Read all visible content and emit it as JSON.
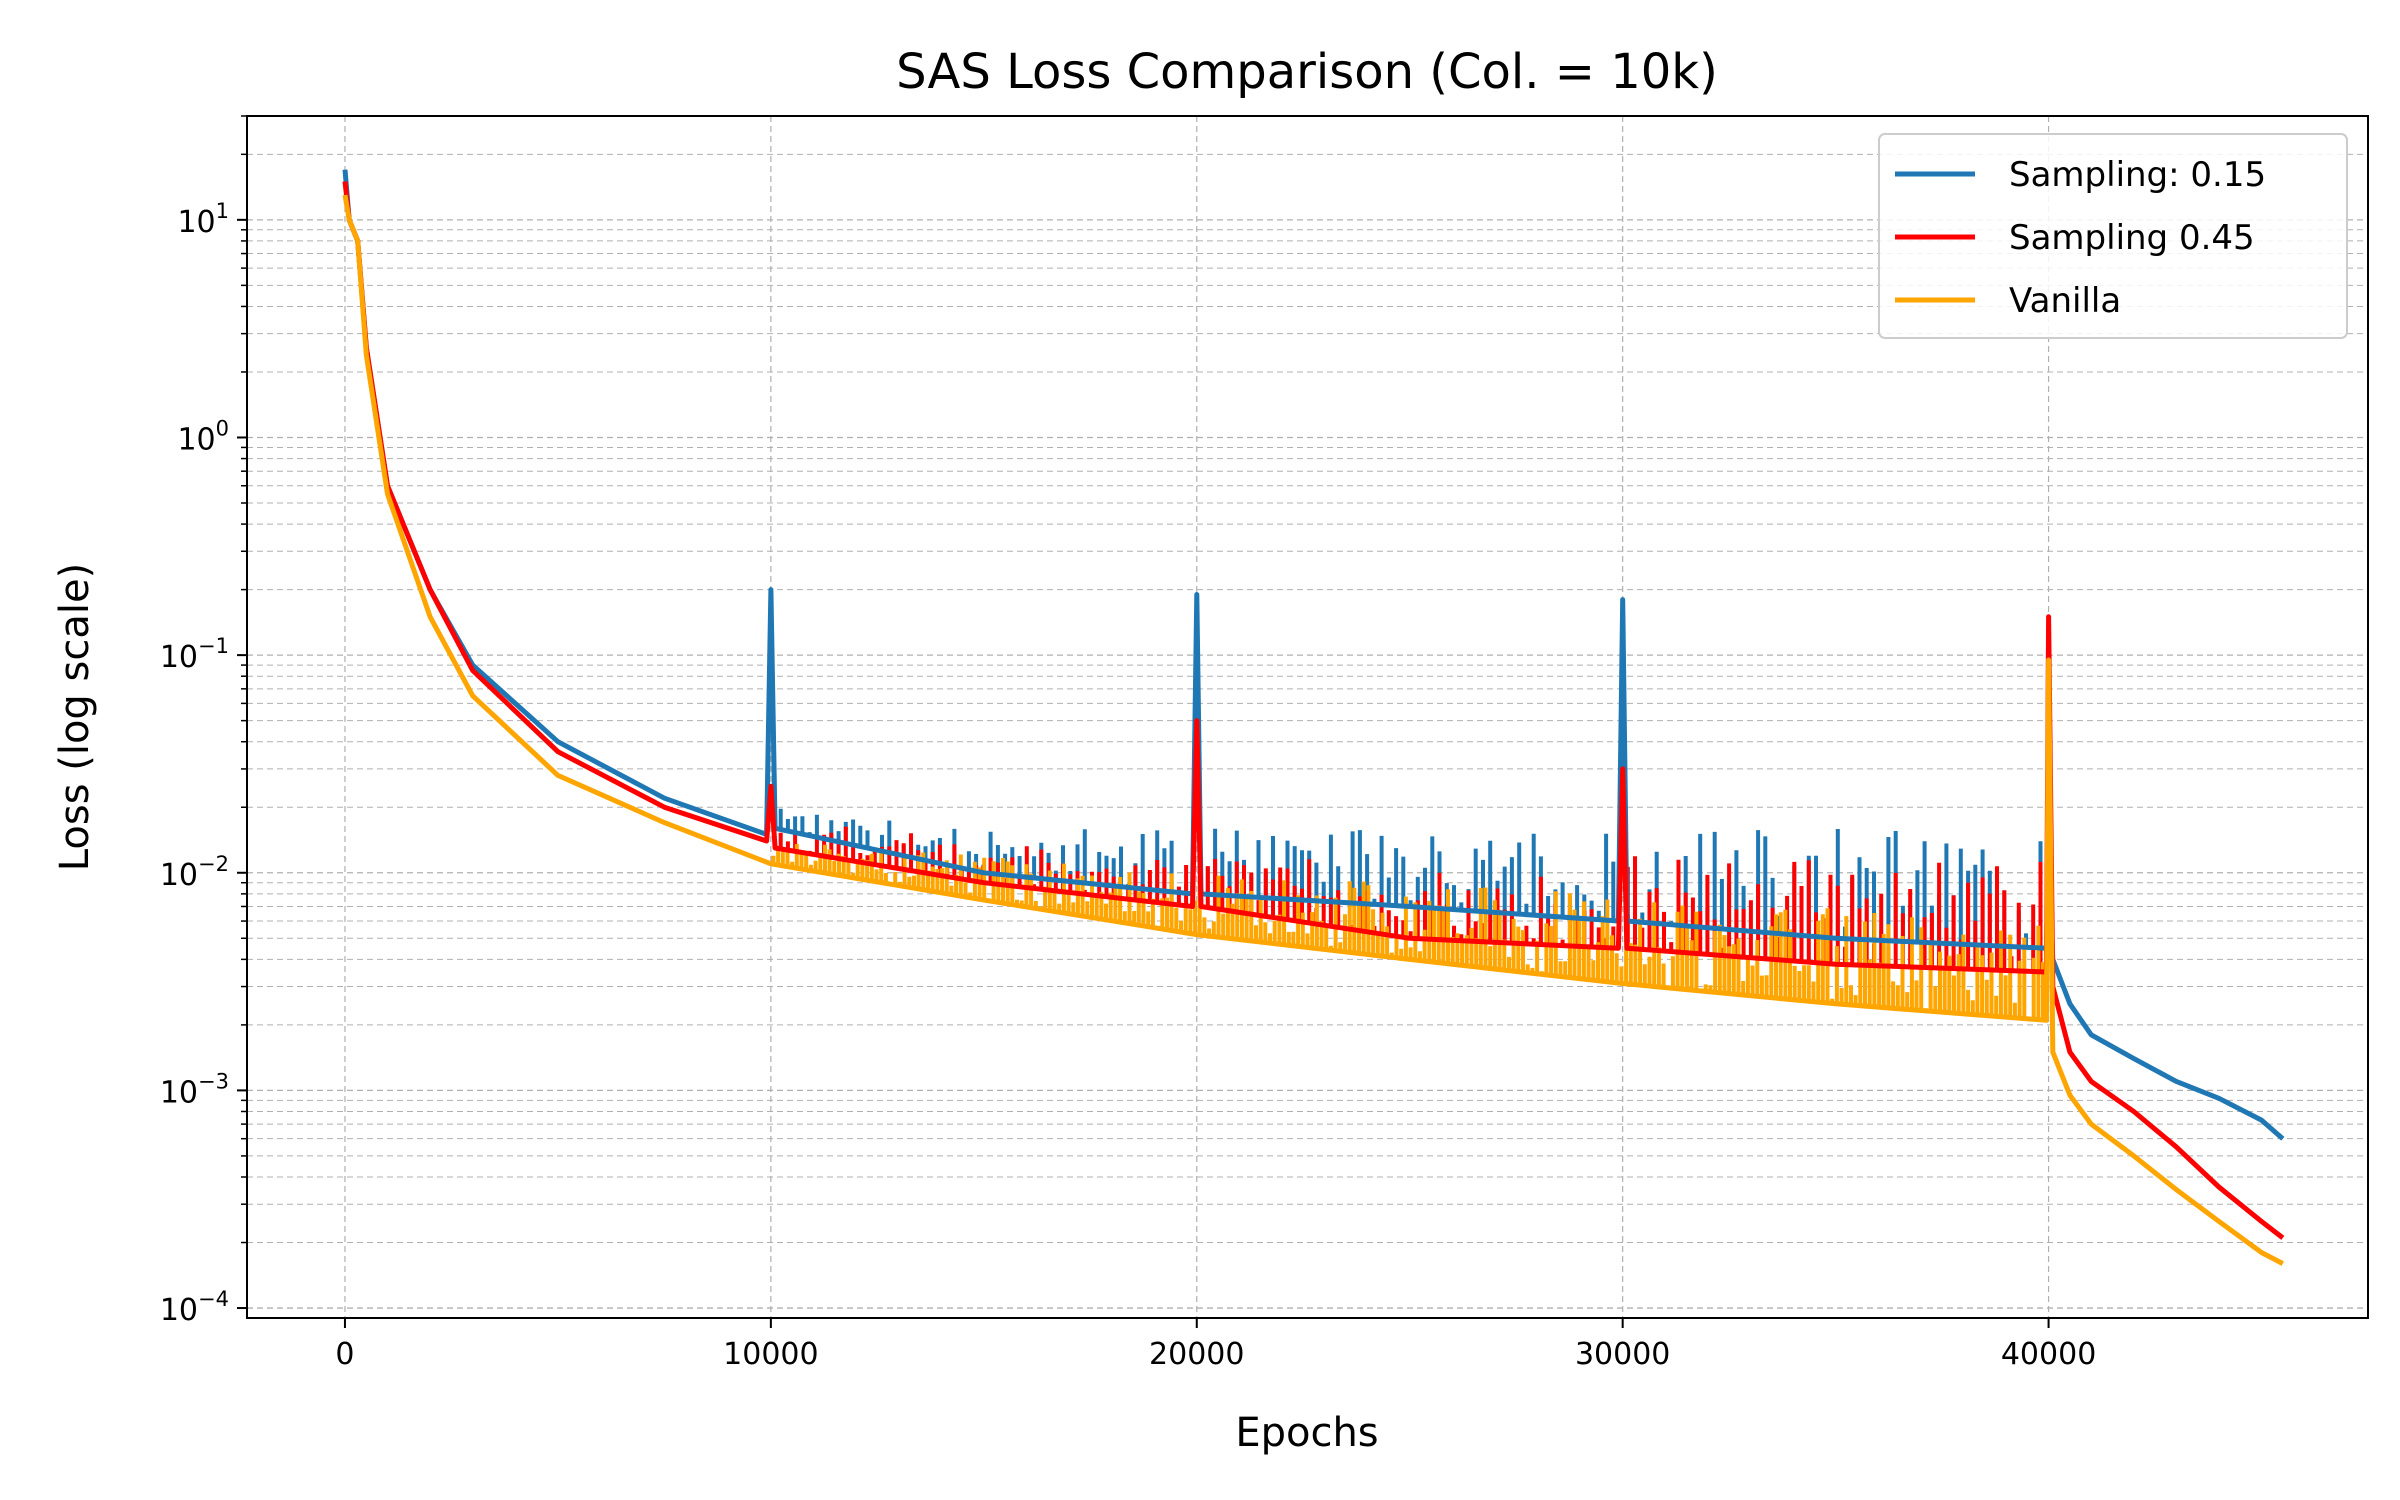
{
  "chart_data": {
    "type": "line",
    "title": "SAS Loss Comparison (Col. = 10k)",
    "xlabel": "Epochs",
    "ylabel": "Loss (log scale)",
    "y_scale": "log",
    "xlim": [
      -2300,
      47500
    ],
    "ylim": [
      9e-05,
      30
    ],
    "x_ticks": [
      0,
      10000,
      20000,
      30000,
      40000
    ],
    "x_tick_labels": [
      "0",
      "10000",
      "20000",
      "30000",
      "40000"
    ],
    "y_ticks": [
      0.0001,
      0.001,
      0.01,
      0.1,
      1,
      10
    ],
    "y_tick_labels": [
      {
        "base": "10",
        "exp": "−4"
      },
      {
        "base": "10",
        "exp": "−3"
      },
      {
        "base": "10",
        "exp": "−2"
      },
      {
        "base": "10",
        "exp": "−1"
      },
      {
        "base": "10",
        "exp": "0"
      },
      {
        "base": "10",
        "exp": "1"
      }
    ],
    "grid": true,
    "legend_position": "top-right",
    "series": [
      {
        "name": "Sampling: 0.15",
        "color": "#1f77b4",
        "x": [
          0,
          100,
          300,
          500,
          1000,
          2000,
          3000,
          5000,
          7500,
          9900,
          10000,
          10100,
          15000,
          19900,
          20000,
          20100,
          25000,
          29900,
          30000,
          30100,
          35000,
          39950,
          40000,
          40100,
          40500,
          41000,
          42000,
          43000,
          44000,
          45000,
          45500
        ],
        "values": [
          17,
          10,
          8,
          2.6,
          0.6,
          0.2,
          0.09,
          0.04,
          0.022,
          0.015,
          0.2,
          0.016,
          0.01,
          0.008,
          0.19,
          0.008,
          0.007,
          0.006,
          0.18,
          0.006,
          0.005,
          0.0045,
          0.012,
          0.004,
          0.0025,
          0.0018,
          0.0014,
          0.0011,
          0.00092,
          0.00073,
          0.0006
        ],
        "upper_envelope": {
          "x": [
            10000,
            15000,
            20000,
            25000,
            30000,
            35000,
            40000
          ],
          "values": [
            0.02,
            0.016,
            0.016,
            0.016,
            0.016,
            0.016,
            0.016
          ]
        }
      },
      {
        "name": "Sampling 0.45",
        "color": "#ff0000",
        "x": [
          0,
          100,
          300,
          500,
          1000,
          2000,
          3000,
          5000,
          7500,
          9900,
          10000,
          10100,
          15000,
          19900,
          20000,
          20100,
          25000,
          29900,
          30000,
          30100,
          35000,
          39950,
          40000,
          40100,
          40500,
          41000,
          42000,
          43000,
          44000,
          45000,
          45500
        ],
        "values": [
          15,
          10,
          8,
          2.6,
          0.6,
          0.2,
          0.085,
          0.036,
          0.02,
          0.014,
          0.025,
          0.013,
          0.009,
          0.007,
          0.05,
          0.007,
          0.005,
          0.0045,
          0.03,
          0.0045,
          0.0038,
          0.0035,
          0.15,
          0.003,
          0.0015,
          0.0011,
          0.0008,
          0.00055,
          0.00036,
          0.00025,
          0.00021
        ],
        "upper_envelope": {
          "x": [
            10000,
            15000,
            20000,
            25000,
            30000,
            35000,
            40000
          ],
          "values": [
            0.018,
            0.014,
            0.012,
            0.012,
            0.012,
            0.012,
            0.012
          ]
        }
      },
      {
        "name": "Vanilla",
        "color": "#ffa500",
        "x": [
          0,
          100,
          300,
          500,
          1000,
          2000,
          3000,
          5000,
          7500,
          10000,
          15000,
          20000,
          25000,
          30000,
          35000,
          39950,
          40000,
          40100,
          40500,
          41000,
          42000,
          43000,
          44000,
          45000,
          45500
        ],
        "values": [
          13,
          10,
          8,
          2.4,
          0.55,
          0.15,
          0.065,
          0.028,
          0.017,
          0.011,
          0.0075,
          0.0052,
          0.004,
          0.0031,
          0.0025,
          0.0021,
          0.095,
          0.0015,
          0.00095,
          0.0007,
          0.0005,
          0.00035,
          0.00025,
          0.00018,
          0.00016
        ],
        "upper_envelope": {
          "x": [
            10000,
            15000,
            20000,
            25000,
            30000,
            35000,
            40000
          ],
          "values": [
            0.014,
            0.012,
            0.01,
            0.009,
            0.008,
            0.007,
            0.006
          ]
        }
      }
    ]
  }
}
